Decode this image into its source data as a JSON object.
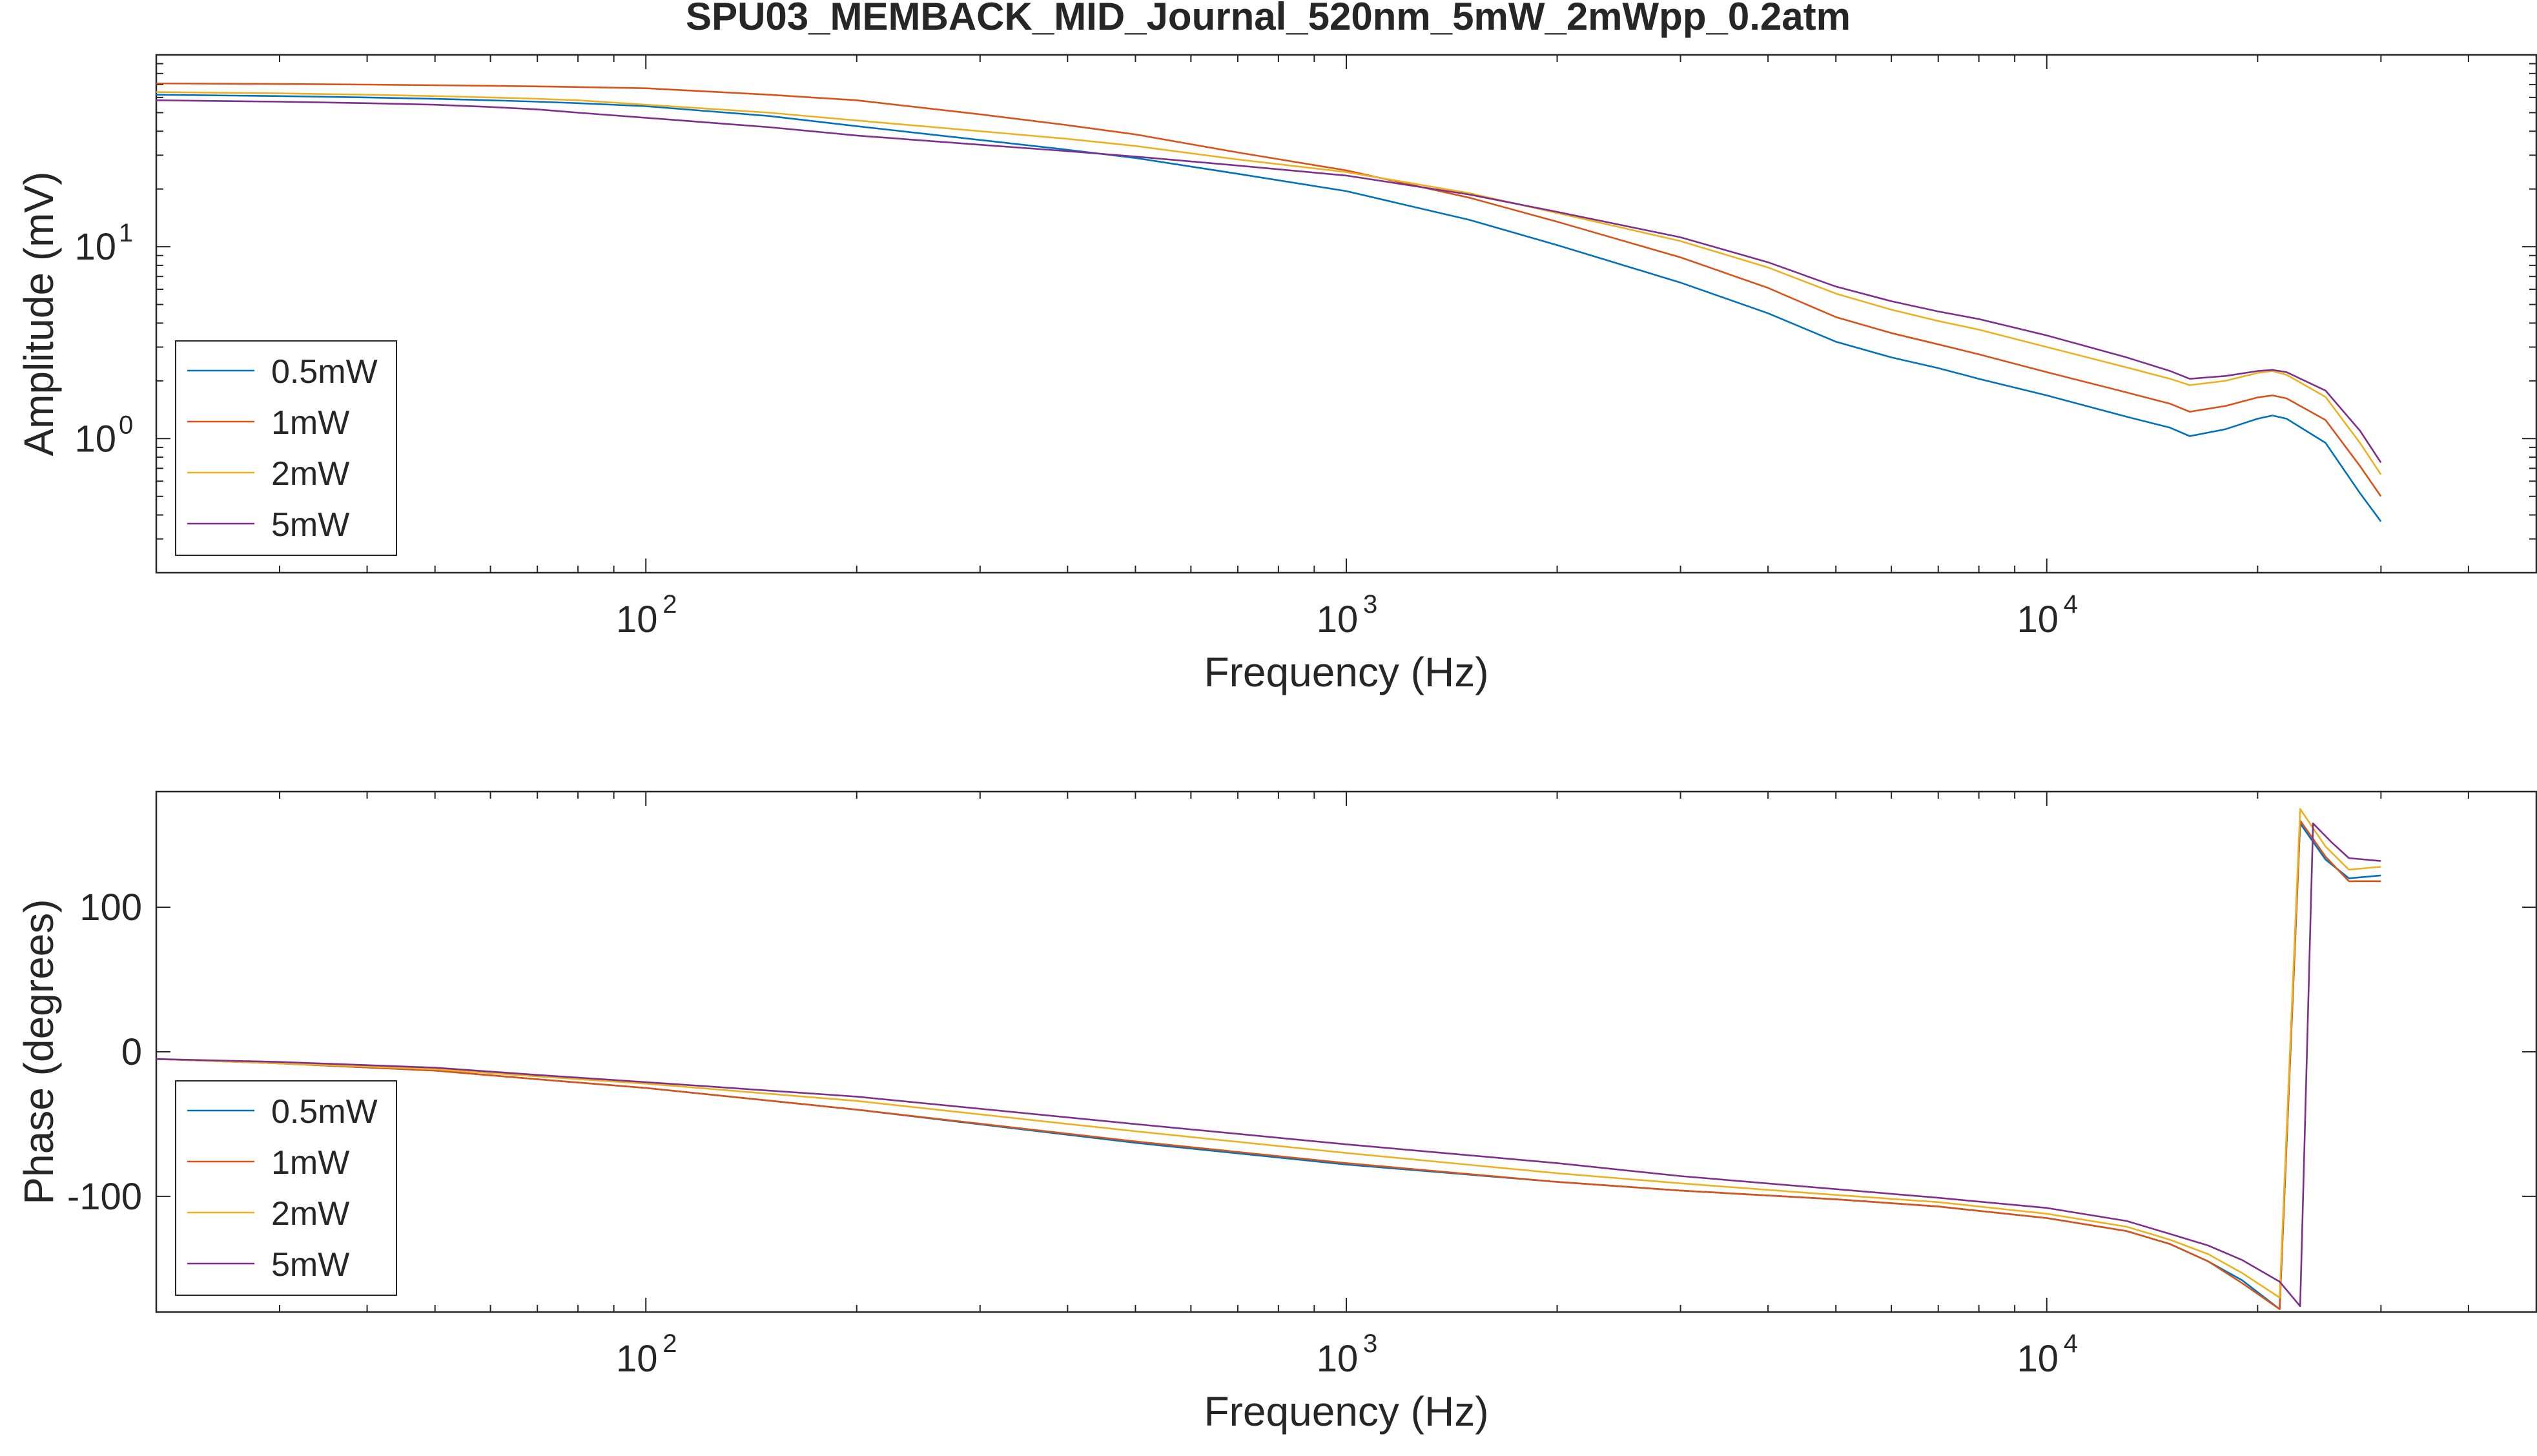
{
  "figure": {
    "title": "SPU03_MEMBACK_MID_Journal_520nm_5mW_2mWpp_0.2atm"
  },
  "chart_data": [
    {
      "type": "line",
      "xscale": "log",
      "yscale": "log",
      "xlabel": "Frequency (Hz)",
      "ylabel": "Amplitude (mV)",
      "xlim": [
        20,
        50000
      ],
      "ylim": [
        0.2,
        100
      ],
      "x_ticks": [
        {
          "value": 100,
          "base": "10",
          "exp": "2"
        },
        {
          "value": 1000,
          "base": "10",
          "exp": "3"
        },
        {
          "value": 10000,
          "base": "10",
          "exp": "4"
        }
      ],
      "y_ticks": [
        {
          "value": 1,
          "base": "10",
          "exp": "0"
        },
        {
          "value": 10,
          "base": "10",
          "exp": "1"
        }
      ],
      "grid": false,
      "legend_position": "left",
      "x": [
        20,
        30,
        40,
        50,
        60,
        70,
        80,
        100,
        150,
        200,
        300,
        400,
        500,
        700,
        1000,
        1500,
        2000,
        3000,
        4000,
        5000,
        6000,
        7000,
        8000,
        10000,
        13000,
        15000,
        16000,
        18000,
        20000,
        21000,
        22000,
        25000,
        28000,
        30000
      ],
      "series": [
        {
          "name": "0.5mW",
          "color": "#0072BD",
          "values": [
            62,
            61,
            60,
            59,
            58,
            57,
            56,
            54,
            48,
            42.5,
            36,
            32,
            29,
            24,
            19.5,
            13.8,
            10.2,
            6.5,
            4.5,
            3.2,
            2.65,
            2.33,
            2.05,
            1.68,
            1.3,
            1.14,
            1.03,
            1.12,
            1.27,
            1.32,
            1.27,
            0.95,
            0.52,
            0.37
          ]
        },
        {
          "name": "1mW",
          "color": "#D95319",
          "values": [
            71,
            70.5,
            70,
            69.5,
            69,
            68.5,
            68,
            67,
            62,
            58,
            49,
            43,
            38.5,
            31,
            25,
            18,
            13.5,
            8.8,
            6.1,
            4.3,
            3.55,
            3.1,
            2.75,
            2.22,
            1.74,
            1.52,
            1.38,
            1.48,
            1.64,
            1.68,
            1.62,
            1.25,
            0.72,
            0.5
          ]
        },
        {
          "name": "2mW",
          "color": "#EDB120",
          "values": [
            64,
            63,
            62,
            61,
            60,
            59,
            58,
            55,
            50,
            45.5,
            40,
            36.5,
            33.5,
            28.5,
            24.5,
            19,
            15,
            10.7,
            7.8,
            5.7,
            4.7,
            4.1,
            3.7,
            3.0,
            2.35,
            2.05,
            1.9,
            2.0,
            2.2,
            2.25,
            2.15,
            1.65,
            0.95,
            0.65
          ]
        },
        {
          "name": "5mW",
          "color": "#7E2F8E",
          "values": [
            58,
            57,
            56,
            55,
            53.5,
            52,
            50,
            47,
            42,
            38,
            34,
            31.5,
            29.5,
            26.5,
            23.5,
            18.7,
            15.2,
            11.2,
            8.3,
            6.2,
            5.2,
            4.6,
            4.2,
            3.45,
            2.65,
            2.25,
            2.05,
            2.12,
            2.25,
            2.28,
            2.22,
            1.78,
            1.1,
            0.75
          ]
        }
      ]
    },
    {
      "type": "line",
      "xscale": "log",
      "yscale": "linear",
      "xlabel": "Frequency (Hz)",
      "ylabel": "Phase (degrees)",
      "xlim": [
        20,
        50000
      ],
      "ylim": [
        -180,
        180
      ],
      "x_ticks": [
        {
          "value": 100,
          "base": "10",
          "exp": "2"
        },
        {
          "value": 1000,
          "base": "10",
          "exp": "3"
        },
        {
          "value": 10000,
          "base": "10",
          "exp": "4"
        }
      ],
      "y_ticks": [
        {
          "value": 100,
          "label": "100"
        },
        {
          "value": 0,
          "label": "0"
        },
        {
          "value": -100,
          "label": "-100"
        }
      ],
      "grid": false,
      "legend_position": "left",
      "series": [
        {
          "name": "0.5mW",
          "color": "#0072BD",
          "x": [
            20,
            30,
            50,
            70,
            100,
            200,
            500,
            1000,
            2000,
            3000,
            5000,
            7000,
            10000,
            13000,
            15000,
            17000,
            19000,
            21500,
            23000,
            25000,
            27000,
            30000
          ],
          "values": [
            -5,
            -8,
            -13,
            -19,
            -25,
            -40,
            -63,
            -78,
            -90,
            -96,
            -102,
            -107,
            -115,
            -124,
            -133,
            -145,
            -158,
            -178,
            158,
            133,
            120,
            122
          ]
        },
        {
          "name": "1mW",
          "color": "#D95319",
          "x": [
            20,
            30,
            50,
            70,
            100,
            200,
            500,
            1000,
            2000,
            3000,
            5000,
            7000,
            10000,
            13000,
            15000,
            17000,
            19000,
            21500,
            23000,
            25000,
            27000,
            30000
          ],
          "values": [
            -5,
            -8,
            -13,
            -19,
            -25,
            -40,
            -62,
            -77,
            -90,
            -96,
            -102,
            -107,
            -115,
            -124,
            -133,
            -145,
            -160,
            -178,
            160,
            135,
            118,
            118
          ]
        },
        {
          "name": "2mW",
          "color": "#EDB120",
          "x": [
            20,
            30,
            50,
            70,
            100,
            200,
            500,
            1000,
            2000,
            3000,
            5000,
            7000,
            10000,
            13000,
            15000,
            17000,
            19000,
            21500,
            23000,
            25000,
            27000,
            30000
          ],
          "values": [
            -5,
            -8,
            -12,
            -17,
            -22,
            -34,
            -55,
            -70,
            -84,
            -91,
            -99,
            -104,
            -112,
            -121,
            -130,
            -140,
            -153,
            -170,
            168,
            142,
            126,
            128
          ]
        },
        {
          "name": "5mW",
          "color": "#7E2F8E",
          "x": [
            20,
            30,
            50,
            70,
            100,
            200,
            500,
            1000,
            2000,
            3000,
            5000,
            7000,
            10000,
            13000,
            15000,
            17000,
            19000,
            21500,
            23000,
            24000,
            25500,
            27000,
            30000
          ],
          "values": [
            -5,
            -7,
            -11,
            -16,
            -21,
            -31,
            -50,
            -64,
            -77,
            -86,
            -95,
            -101,
            -108,
            -117,
            -126,
            -134,
            -144,
            -159,
            -176,
            158,
            145,
            134,
            132
          ]
        }
      ]
    }
  ]
}
